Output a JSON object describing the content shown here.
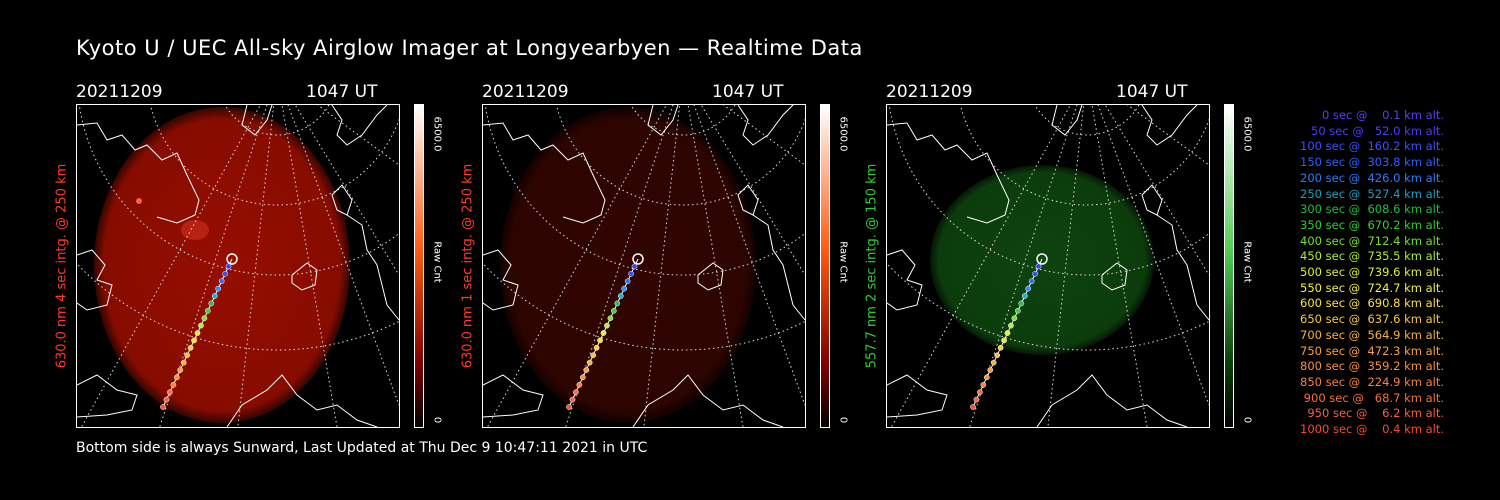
{
  "title": "Kyoto U / UEC All-sky Airglow Imager at Longyearbyen — Realtime Data",
  "footer": "Bottom side is always Sunward, Last Updated at Thu Dec  9 10:47:11 2021 in UTC",
  "panels": [
    {
      "date": "20211209",
      "time": "1047 UT",
      "ylabel": "630.0 nm 4 sec intg. @ 250 km",
      "label_color": "#ff3b2a",
      "glow_color": "#b01000",
      "glow_opacity": 0.85,
      "cbar_top": "#ffffff",
      "cbar_mid": "#ff5a10",
      "cbar_low": "#800000",
      "cbar_max": "6500.0",
      "cbar_unit": "Raw Cnt",
      "cbar_min": "0"
    },
    {
      "date": "20211209",
      "time": "1047 UT",
      "ylabel": "630.0 nm 1 sec intg. @ 250 km",
      "label_color": "#ff3b2a",
      "glow_color": "#3a0500",
      "glow_opacity": 0.85,
      "cbar_top": "#ffffff",
      "cbar_mid": "#ff5a10",
      "cbar_low": "#800000",
      "cbar_max": "6500.0",
      "cbar_unit": "Raw Cnt",
      "cbar_min": "0"
    },
    {
      "date": "20211209",
      "time": "1047 UT",
      "ylabel": "557.7 nm 2 sec intg. @ 150 km",
      "label_color": "#33cc33",
      "glow_color": "#0f4a0f",
      "glow_opacity": 0.9,
      "cbar_top": "#ffffff",
      "cbar_mid": "#55cc55",
      "cbar_low": "#0a400a",
      "cbar_max": "6500.0",
      "cbar_unit": "Raw Cnt",
      "cbar_min": "0"
    }
  ],
  "legend": [
    {
      "text": "   0 sec @    0.1 km alt.",
      "color": "#5a3cff"
    },
    {
      "text": "  50 sec @   52.0 km alt.",
      "color": "#4a3cff"
    },
    {
      "text": " 100 sec @  160.2 km alt.",
      "color": "#3a50ff"
    },
    {
      "text": " 150 sec @  303.8 km alt.",
      "color": "#2a60ff"
    },
    {
      "text": " 200 sec @  426.0 km alt.",
      "color": "#2a7cff"
    },
    {
      "text": " 250 sec @  527.4 km alt.",
      "color": "#1aa0c0"
    },
    {
      "text": " 300 sec @  608.6 km alt.",
      "color": "#18c040"
    },
    {
      "text": " 350 sec @  670.2 km alt.",
      "color": "#30d030"
    },
    {
      "text": " 400 sec @  712.4 km alt.",
      "color": "#70e030"
    },
    {
      "text": " 450 sec @  735.5 km alt.",
      "color": "#a8f030"
    },
    {
      "text": " 500 sec @  739.6 km alt.",
      "color": "#d8f030"
    },
    {
      "text": " 550 sec @  724.7 km alt.",
      "color": "#f0f040"
    },
    {
      "text": " 600 sec @  690.8 km alt.",
      "color": "#f8e040"
    },
    {
      "text": " 650 sec @  637.6 km alt.",
      "color": "#f8c840"
    },
    {
      "text": " 700 sec @  564.9 km alt.",
      "color": "#f8b040"
    },
    {
      "text": " 750 sec @  472.3 km alt.",
      "color": "#f8a040"
    },
    {
      "text": " 800 sec @  359.2 km alt.",
      "color": "#f89040"
    },
    {
      "text": " 850 sec @  224.9 km alt.",
      "color": "#f88040"
    },
    {
      "text": " 900 sec @   68.7 km alt.",
      "color": "#f87040"
    },
    {
      "text": " 950 sec @    6.2 km alt.",
      "color": "#f86040"
    },
    {
      "text": "1000 sec @    0.4 km alt.",
      "color": "#f84a30"
    }
  ]
}
